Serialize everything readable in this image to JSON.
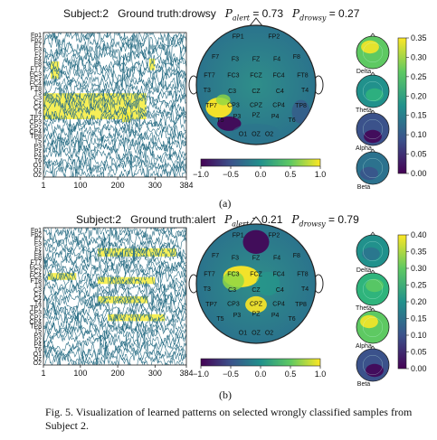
{
  "panels": [
    {
      "id": "a",
      "title": {
        "subject": "Subject:2",
        "truth": "Ground truth:drowsy",
        "alert": "P",
        "alert_sub": "alert",
        "alert_val": "= 0.73",
        "drowsy": "P",
        "drowsy_sub": "drowsy",
        "drowsy_val": "= 0.27"
      },
      "channels": [
        "Fp1",
        "Fp2",
        "F7",
        "F3",
        "Fz",
        "F4",
        "F8",
        "FT7",
        "FC3",
        "FCz",
        "FC4",
        "FT8",
        "T3",
        "C3",
        "Cz",
        "C4",
        "T4",
        "TP7",
        "CP3",
        "CPz",
        "CP4",
        "TP8",
        "T5",
        "P3",
        "Pz",
        "P4",
        "T6",
        "O1",
        "Oz",
        "O2"
      ],
      "xticks": [
        "1",
        "100",
        "200",
        "300",
        "384"
      ],
      "electrodes": [
        "FP1",
        "FP2",
        "F7",
        "F3",
        "FZ",
        "F4",
        "F8",
        "FT7",
        "FC3",
        "FCZ",
        "FC4",
        "FT8",
        "T3",
        "C3",
        "CZ",
        "C4",
        "T4",
        "TP7",
        "CP3",
        "CPZ",
        "CP4",
        "TP8",
        "T5",
        "P3",
        "PZ",
        "P4",
        "T6",
        "O1",
        "OZ",
        "O2"
      ],
      "cbar_ticks": [
        "−1.0",
        "−0.5",
        "0.0",
        "0.5",
        "1.0"
      ],
      "bands": [
        "Delta",
        "Theta",
        "Alpha",
        "Beta"
      ],
      "band_cbar_ticks": [
        "0.35",
        "0.30",
        "0.25",
        "0.20",
        "0.15",
        "0.10",
        "0.05",
        "0.00"
      ],
      "label": "(a)"
    },
    {
      "id": "b",
      "title": {
        "subject": "Subject:2",
        "truth": "Ground truth:alert",
        "alert": "P",
        "alert_sub": "alert",
        "alert_val": "= 0.21",
        "drowsy": "P",
        "drowsy_sub": "drowsy",
        "drowsy_val": "= 0.79"
      },
      "channels": [
        "Fp1",
        "Fp2",
        "F7",
        "F3",
        "Fz",
        "F4",
        "F8",
        "FT7",
        "FC3",
        "FCz",
        "FC4",
        "FT8",
        "T3",
        "C3",
        "Cz",
        "C4",
        "T4",
        "TP7",
        "CP3",
        "CPz",
        "CP4",
        "TP8",
        "T5",
        "P3",
        "Pz",
        "P4",
        "T6",
        "O1",
        "Oz",
        "O2"
      ],
      "xticks": [
        "1",
        "100",
        "200",
        "300",
        "384"
      ],
      "electrodes": [
        "FP1",
        "FP2",
        "F7",
        "F3",
        "FZ",
        "F4",
        "F8",
        "FT7",
        "FC3",
        "FCZ",
        "FC4",
        "FT8",
        "T3",
        "C3",
        "CZ",
        "C4",
        "T4",
        "TP7",
        "CP3",
        "CPZ",
        "CP4",
        "TP8",
        "T5",
        "P3",
        "PZ",
        "P4",
        "T6",
        "O1",
        "OZ",
        "O2"
      ],
      "cbar_ticks": [
        "−1.0",
        "−0.5",
        "0.0",
        "0.5",
        "1.0"
      ],
      "bands": [
        "Delta",
        "Theta",
        "Alpha",
        "Beta"
      ],
      "band_cbar_ticks": [
        "0.40",
        "0.35",
        "0.30",
        "0.25",
        "0.20",
        "0.15",
        "0.10",
        "0.05",
        "0.00"
      ],
      "label": "(b)"
    }
  ],
  "caption": "Fig. 5. Visualization of learned patterns on selected wrongly classified samples from Subject 2.",
  "colors": {
    "trace": "#2b6f86",
    "highlight": "#f4ec3a",
    "viridis_dark": "#440154",
    "viridis_mid": "#21918c",
    "viridis_light": "#fde725"
  }
}
